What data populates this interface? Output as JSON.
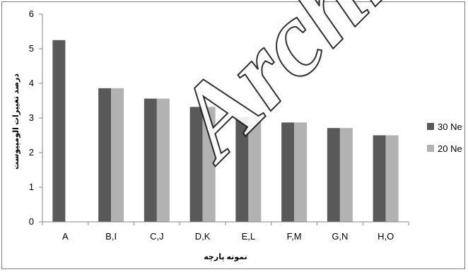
{
  "chart_data": {
    "type": "bar",
    "categories": [
      "A",
      "B,I",
      "C,J",
      "D,K",
      "E,L",
      "F,M",
      "G,N",
      "H,O"
    ],
    "series": [
      {
        "name": "30 Ne",
        "color": "#595959",
        "values": [
          5.25,
          3.86,
          3.56,
          3.32,
          3.03,
          2.87,
          2.71,
          2.5
        ]
      },
      {
        "name": "20 Ne",
        "color": "#b2b2b2",
        "values": [
          null,
          3.86,
          3.56,
          3.32,
          3.03,
          2.87,
          2.71,
          2.5
        ]
      }
    ],
    "xlabel": "نمونه پارچه",
    "ylabel": "درصد تغییرات الومپیوست",
    "ylim": [
      0,
      6
    ],
    "yticks": [
      0,
      1,
      2,
      3,
      4,
      5,
      6
    ],
    "grid": false,
    "legend": "right"
  },
  "watermark": "Archive"
}
